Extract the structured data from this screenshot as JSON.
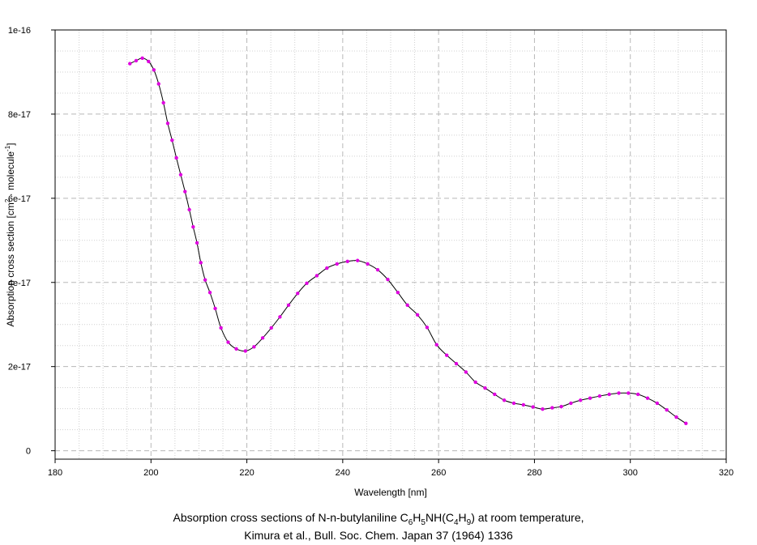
{
  "chart_data": {
    "type": "line",
    "xlabel": "Wavelength [nm]",
    "ylabel": {
      "base": "Absorption cross section [cm",
      "sup1": "2",
      "mid": " · molecule",
      "sup2": "-1",
      "end": "]"
    },
    "xlim": [
      180,
      320
    ],
    "ylim": [
      -2e-18,
      1e-16
    ],
    "x_ticks": [
      180,
      200,
      220,
      240,
      260,
      280,
      300,
      320
    ],
    "x_tick_labels": [
      "180",
      "200",
      "220",
      "240",
      "260",
      "280",
      "300",
      "320"
    ],
    "y_ticks": [
      0,
      2e-17,
      4e-17,
      6e-17,
      8e-17,
      1e-16
    ],
    "y_tick_labels": [
      "0",
      "2e-17",
      "4e-17",
      "6e-17",
      "8e-17",
      "1e-16"
    ],
    "grid": true,
    "line_color": "#000000",
    "marker_color": "#e000e0",
    "series": [
      {
        "x": [
          195.6,
          196.9,
          198.2,
          199.5,
          200.6,
          201.6,
          202.6,
          203.5,
          204.4,
          205.3,
          206.2,
          207.1,
          208.0,
          208.8,
          209.6,
          210.4,
          211.3,
          212.3,
          213.4,
          214.6,
          216.1,
          217.8,
          219.7,
          221.5,
          223.3,
          225.1,
          226.9,
          228.7,
          230.6,
          232.5,
          234.6,
          236.7,
          238.8,
          241.0,
          243.1,
          245.2,
          247.3,
          249.4,
          251.5,
          253.5,
          255.6,
          257.6,
          259.6,
          261.7,
          263.7,
          265.7,
          267.7,
          269.7,
          271.7,
          273.7,
          275.7,
          277.7,
          279.7,
          281.7,
          283.7,
          285.6,
          287.6,
          289.6,
          291.6,
          293.6,
          295.6,
          297.6,
          299.6,
          301.6,
          303.6,
          305.6,
          307.6,
          309.6,
          311.6
        ],
        "y": [
          9.2e-17,
          9.27e-17,
          9.33e-17,
          9.25e-17,
          9.05e-17,
          8.72e-17,
          8.27e-17,
          7.78e-17,
          7.38e-17,
          6.96e-17,
          6.56e-17,
          6.16e-17,
          5.73e-17,
          5.32e-17,
          4.94e-17,
          4.47e-17,
          4.06e-17,
          3.76e-17,
          3.38e-17,
          2.92e-17,
          2.58e-17,
          2.42e-17,
          2.37e-17,
          2.47e-17,
          2.68e-17,
          2.92e-17,
          3.18e-17,
          3.46e-17,
          3.74e-17,
          3.98e-17,
          4.16e-17,
          4.34e-17,
          4.44e-17,
          4.5e-17,
          4.52e-17,
          4.44e-17,
          4.3e-17,
          4.07e-17,
          3.76e-17,
          3.46e-17,
          3.23e-17,
          2.93e-17,
          2.52e-17,
          2.27e-17,
          2.07e-17,
          1.87e-17,
          1.63e-17,
          1.49e-17,
          1.34e-17,
          1.2e-17,
          1.13e-17,
          1.09e-17,
          1.04e-17,
          9.9e-18,
          1.02e-17,
          1.05e-17,
          1.13e-17,
          1.2e-17,
          1.25e-17,
          1.3e-17,
          1.34e-17,
          1.37e-17,
          1.37e-17,
          1.34e-17,
          1.25e-17,
          1.13e-17,
          9.7e-18,
          8e-18,
          6.5e-18
        ]
      }
    ]
  },
  "caption": {
    "line1_a": "Absorption cross sections of N-n-butylaniline C",
    "sub1": "6",
    "line1_b": "H",
    "sub2": "5",
    "line1_c": "NH(C",
    "sub3": "4",
    "line1_d": "H",
    "sub4": "9",
    "line1_e": ") at room temperature,",
    "line2": "Kimura et al., Bull. Soc. Chem. Japan 37 (1964) 1336"
  }
}
